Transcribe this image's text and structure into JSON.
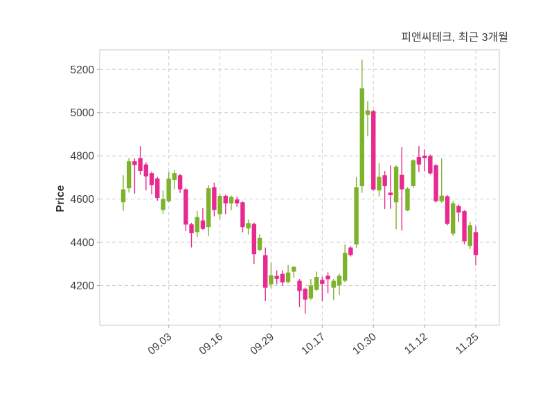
{
  "chart_data": {
    "type": "candlestick",
    "title": "피앤씨테크, 최근 3개월",
    "ylabel": "Price",
    "xlabel": "",
    "grid": true,
    "ylim": [
      4016,
      5290
    ],
    "y_ticks": [
      4200,
      4400,
      4600,
      4800,
      5000,
      5200
    ],
    "x_tick_labels": [
      "09.03",
      "09.16",
      "09.29",
      "10.17",
      "10.30",
      "11.12",
      "11.25"
    ],
    "x_tick_indices": [
      8,
      17,
      26,
      35,
      44,
      53,
      62
    ],
    "n_candles": 63,
    "colors": {
      "up": "#7db32b",
      "down": "#e62a8f"
    },
    "ohlc_format": [
      "open",
      "high",
      "low",
      "close"
    ],
    "candles": [
      [
        4585,
        4710,
        4545,
        4645
      ],
      [
        4650,
        4790,
        4630,
        4775
      ],
      [
        4775,
        4788,
        4625,
        4758
      ],
      [
        4790,
        4845,
        4712,
        4730
      ],
      [
        4760,
        4770,
        4640,
        4705
      ],
      [
        4720,
        4728,
        4622,
        4665
      ],
      [
        4695,
        4702,
        4592,
        4605
      ],
      [
        4550,
        4640,
        4532,
        4600
      ],
      [
        4590,
        4726,
        4585,
        4695
      ],
      [
        4688,
        4733,
        4645,
        4720
      ],
      [
        4710,
        4716,
        4628,
        4645
      ],
      [
        4645,
        4652,
        4452,
        4482
      ],
      [
        4483,
        4490,
        4376,
        4442
      ],
      [
        4447,
        4545,
        4424,
        4517
      ],
      [
        4501,
        4558,
        4458,
        4462
      ],
      [
        4470,
        4666,
        4428,
        4650
      ],
      [
        4655,
        4676,
        4520,
        4550
      ],
      [
        4530,
        4622,
        4505,
        4615
      ],
      [
        4615,
        4620,
        4530,
        4580
      ],
      [
        4580,
        4616,
        4549,
        4610
      ],
      [
        4598,
        4611,
        4564,
        4580
      ],
      [
        4585,
        4590,
        4446,
        4470
      ],
      [
        4464,
        4505,
        4436,
        4489
      ],
      [
        4485,
        4491,
        4300,
        4345
      ],
      [
        4365,
        4436,
        4358,
        4420
      ],
      [
        4340,
        4376,
        4128,
        4190
      ],
      [
        4205,
        4306,
        4188,
        4248
      ],
      [
        4244,
        4270,
        4205,
        4231
      ],
      [
        4254,
        4271,
        4199,
        4214
      ],
      [
        4216,
        4295,
        4210,
        4260
      ],
      [
        4264,
        4291,
        4236,
        4286
      ],
      [
        4222,
        4230,
        4100,
        4175
      ],
      [
        4185,
        4190,
        4070,
        4135
      ],
      [
        4140,
        4230,
        4134,
        4200
      ],
      [
        4180,
        4265,
        4175,
        4240
      ],
      [
        4226,
        4241,
        4128,
        4208
      ],
      [
        4245,
        4261,
        4164,
        4229
      ],
      [
        4190,
        4230,
        4133,
        4222
      ],
      [
        4200,
        4255,
        4156,
        4245
      ],
      [
        4222,
        4390,
        4215,
        4351
      ],
      [
        4376,
        4382,
        4334,
        4341
      ],
      [
        4390,
        4701,
        4375,
        4655
      ],
      [
        4660,
        5245,
        4629,
        5113
      ],
      [
        4990,
        5053,
        4890,
        5010
      ],
      [
        5007,
        5012,
        4638,
        4644
      ],
      [
        4640,
        4766,
        4613,
        4703
      ],
      [
        4710,
        4730,
        4554,
        4660
      ],
      [
        4630,
        4755,
        4555,
        4618
      ],
      [
        4585,
        4756,
        4460,
        4750
      ],
      [
        4712,
        4841,
        4454,
        4645
      ],
      [
        4548,
        4655,
        4544,
        4648
      ],
      [
        4660,
        4784,
        4652,
        4780
      ],
      [
        4794,
        4845,
        4725,
        4760
      ],
      [
        4801,
        4830,
        4729,
        4790
      ],
      [
        4800,
        4806,
        4714,
        4719
      ],
      [
        4757,
        4761,
        4584,
        4590
      ],
      [
        4590,
        4789,
        4583,
        4616
      ],
      [
        4613,
        4619,
        4479,
        4485
      ],
      [
        4440,
        4591,
        4430,
        4580
      ],
      [
        4568,
        4574,
        4494,
        4538
      ],
      [
        4544,
        4549,
        4390,
        4405
      ],
      [
        4383,
        4494,
        4369,
        4479
      ],
      [
        4447,
        4476,
        4293,
        4341
      ]
    ]
  }
}
